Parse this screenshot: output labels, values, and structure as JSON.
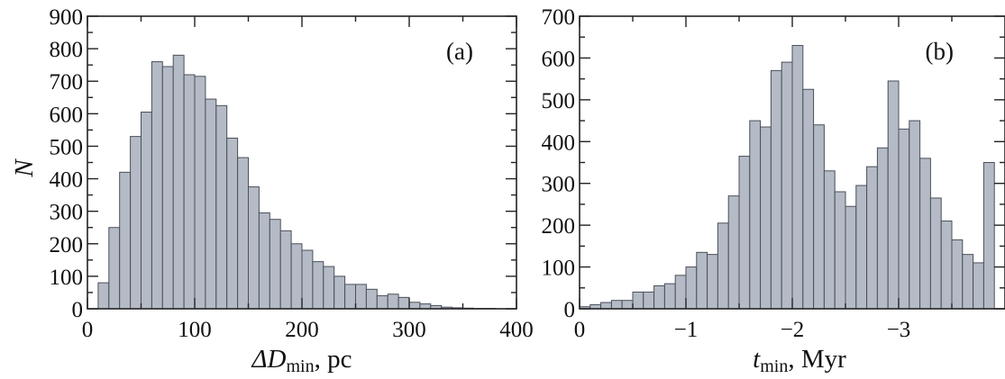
{
  "chart_data": [
    {
      "type": "bar",
      "panel_label": "(a)",
      "ylabel": "N",
      "xlabel": {
        "main": "ΔD",
        "sub": "min",
        "unit": ", pc"
      },
      "xlim": [
        0,
        400
      ],
      "ylim": [
        0,
        900
      ],
      "xticks": [
        "0",
        "100",
        "200",
        "300",
        "400"
      ],
      "yticks": [
        "0",
        "100",
        "200",
        "300",
        "400",
        "500",
        "600",
        "700",
        "800",
        "900"
      ],
      "bin_width": 10,
      "bin_start": 10,
      "values": [
        80,
        250,
        420,
        530,
        605,
        760,
        745,
        780,
        720,
        715,
        645,
        625,
        525,
        465,
        375,
        295,
        275,
        240,
        200,
        180,
        145,
        130,
        100,
        75,
        75,
        60,
        40,
        45,
        35,
        20,
        15,
        10,
        5,
        3,
        2,
        1,
        1,
        0,
        0
      ]
    },
    {
      "type": "bar",
      "panel_label": "(b)",
      "ylabel": "",
      "xlabel": {
        "main": "t",
        "sub": "min",
        "unit": ", Myr"
      },
      "xlim": [
        0,
        -4
      ],
      "ylim": [
        0,
        700
      ],
      "xticks": [
        "0",
        "−1",
        "−2",
        "−3"
      ],
      "yticks": [
        "0",
        "100",
        "200",
        "300",
        "400",
        "500",
        "600",
        "700"
      ],
      "bin_width": 0.1,
      "bin_start": 0,
      "values": [
        5,
        10,
        15,
        20,
        20,
        40,
        40,
        55,
        60,
        80,
        100,
        135,
        130,
        205,
        270,
        365,
        450,
        435,
        570,
        590,
        630,
        525,
        440,
        330,
        280,
        245,
        295,
        340,
        385,
        545,
        430,
        450,
        360,
        265,
        210,
        165,
        130,
        110,
        350
      ]
    }
  ]
}
